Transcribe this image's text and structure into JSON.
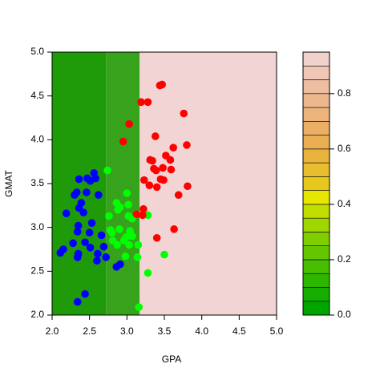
{
  "chart_data": {
    "type": "scatter",
    "x_label": "GPA",
    "y_label": "GMAT",
    "xlim": [
      2.0,
      5.0
    ],
    "ylim": [
      2.0,
      5.0
    ],
    "xticks": [
      {
        "value": 2.0,
        "label": "2.0"
      },
      {
        "value": 2.5,
        "label": "2.5"
      },
      {
        "value": 3.0,
        "label": "3.0"
      },
      {
        "value": 3.5,
        "label": "3.5"
      },
      {
        "value": 4.0,
        "label": "4.0"
      },
      {
        "value": 4.5,
        "label": "4.5"
      },
      {
        "value": 5.0,
        "label": "5.0"
      }
    ],
    "yticks": [
      {
        "value": 2.0,
        "label": "2.0"
      },
      {
        "value": 2.5,
        "label": "2.5"
      },
      {
        "value": 3.0,
        "label": "3.0"
      },
      {
        "value": 3.5,
        "label": "3.5"
      },
      {
        "value": 4.0,
        "label": "4.0"
      },
      {
        "value": 4.5,
        "label": "4.5"
      },
      {
        "value": 5.0,
        "label": "5.0"
      }
    ],
    "regions": [
      {
        "x": [
          2.0,
          2.72
        ],
        "color": "#1f9b0a"
      },
      {
        "x": [
          2.72,
          3.17
        ],
        "color": "#37a31c"
      },
      {
        "x": [
          3.17,
          5.0
        ],
        "color": "#f2d4d4"
      }
    ],
    "series": [
      {
        "color": "#0000ff",
        "x": [
          2.56,
          2.58,
          2.51,
          2.47,
          2.36,
          2.46,
          2.33,
          2.62,
          2.3,
          2.39,
          2.36,
          2.19,
          2.42,
          2.53,
          2.35,
          2.34,
          2.5,
          2.66,
          2.44,
          2.28,
          2.51,
          2.69,
          2.61,
          2.35,
          2.34,
          2.15,
          2.11,
          2.72,
          2.6,
          2.86,
          2.91,
          2.44,
          2.34
        ],
        "values": [
          3.62,
          3.56,
          3.53,
          3.56,
          3.55,
          3.4,
          3.4,
          3.37,
          3.37,
          3.28,
          3.22,
          3.16,
          3.17,
          3.05,
          3.02,
          2.95,
          2.94,
          2.91,
          2.83,
          2.82,
          2.77,
          2.78,
          2.7,
          2.7,
          2.66,
          2.75,
          2.71,
          2.66,
          2.62,
          2.55,
          2.58,
          2.24,
          2.15
        ]
      },
      {
        "color": "#00ff00",
        "x": [
          2.74,
          2.76,
          2.86,
          2.91,
          2.88,
          3.0,
          3.02,
          3.02,
          3.07,
          2.78,
          2.9,
          2.8,
          3.04,
          3.07,
          2.99,
          2.81,
          2.96,
          2.87,
          3.03,
          3.15,
          2.98,
          3.14,
          3.28,
          3.28,
          3.5,
          3.16
        ],
        "values": [
          3.65,
          3.13,
          3.28,
          3.23,
          3.2,
          3.39,
          3.26,
          3.13,
          3.1,
          2.97,
          2.98,
          2.94,
          2.96,
          2.9,
          2.89,
          2.85,
          2.85,
          2.8,
          2.8,
          2.8,
          2.67,
          2.66,
          3.14,
          2.48,
          2.69,
          2.09
        ]
      },
      {
        "color": "#ff0000",
        "x": [
          3.47,
          3.44,
          3.19,
          3.28,
          3.76,
          3.03,
          2.95,
          3.38,
          3.62,
          3.8,
          3.31,
          3.34,
          3.52,
          3.58,
          3.36,
          3.48,
          3.23,
          3.39,
          3.45,
          3.3,
          3.4,
          3.49,
          3.59,
          3.69,
          3.81,
          3.22,
          3.21,
          3.13,
          3.4,
          3.63
        ],
        "values": [
          4.63,
          4.62,
          4.43,
          4.43,
          4.3,
          4.18,
          3.98,
          4.04,
          3.91,
          3.94,
          3.77,
          3.76,
          3.82,
          3.77,
          3.67,
          3.68,
          3.54,
          3.65,
          3.55,
          3.48,
          3.46,
          3.54,
          3.66,
          3.37,
          3.47,
          3.21,
          3.14,
          3.15,
          2.88,
          2.98
        ]
      }
    ],
    "colorbar": {
      "levels": [
        0,
        0.05,
        0.1,
        0.15,
        0.2,
        0.25,
        0.3,
        0.35,
        0.4,
        0.45,
        0.5,
        0.55,
        0.6,
        0.65,
        0.7,
        0.75,
        0.8,
        0.85,
        0.9,
        0.95
      ],
      "colors": [
        "#00a600",
        "#16ae00",
        "#2db600",
        "#47be00",
        "#63c600",
        "#81ce00",
        "#a0d600",
        "#c2de00",
        "#e6e600",
        "#e7c81f",
        "#e8bd2f",
        "#e9b43e",
        "#eaaf52",
        "#ebb065",
        "#ecb37a",
        "#edb78e",
        "#eebda2",
        "#f0c6b7",
        "#f1d1cb"
      ],
      "ticks": [
        {
          "value": 0,
          "label": "0.0"
        },
        {
          "value": 0.2,
          "label": "0.2"
        },
        {
          "value": 0.4,
          "label": "0.4"
        },
        {
          "value": 0.6,
          "label": "0.6"
        },
        {
          "value": 0.8,
          "label": "0.8"
        }
      ]
    }
  }
}
